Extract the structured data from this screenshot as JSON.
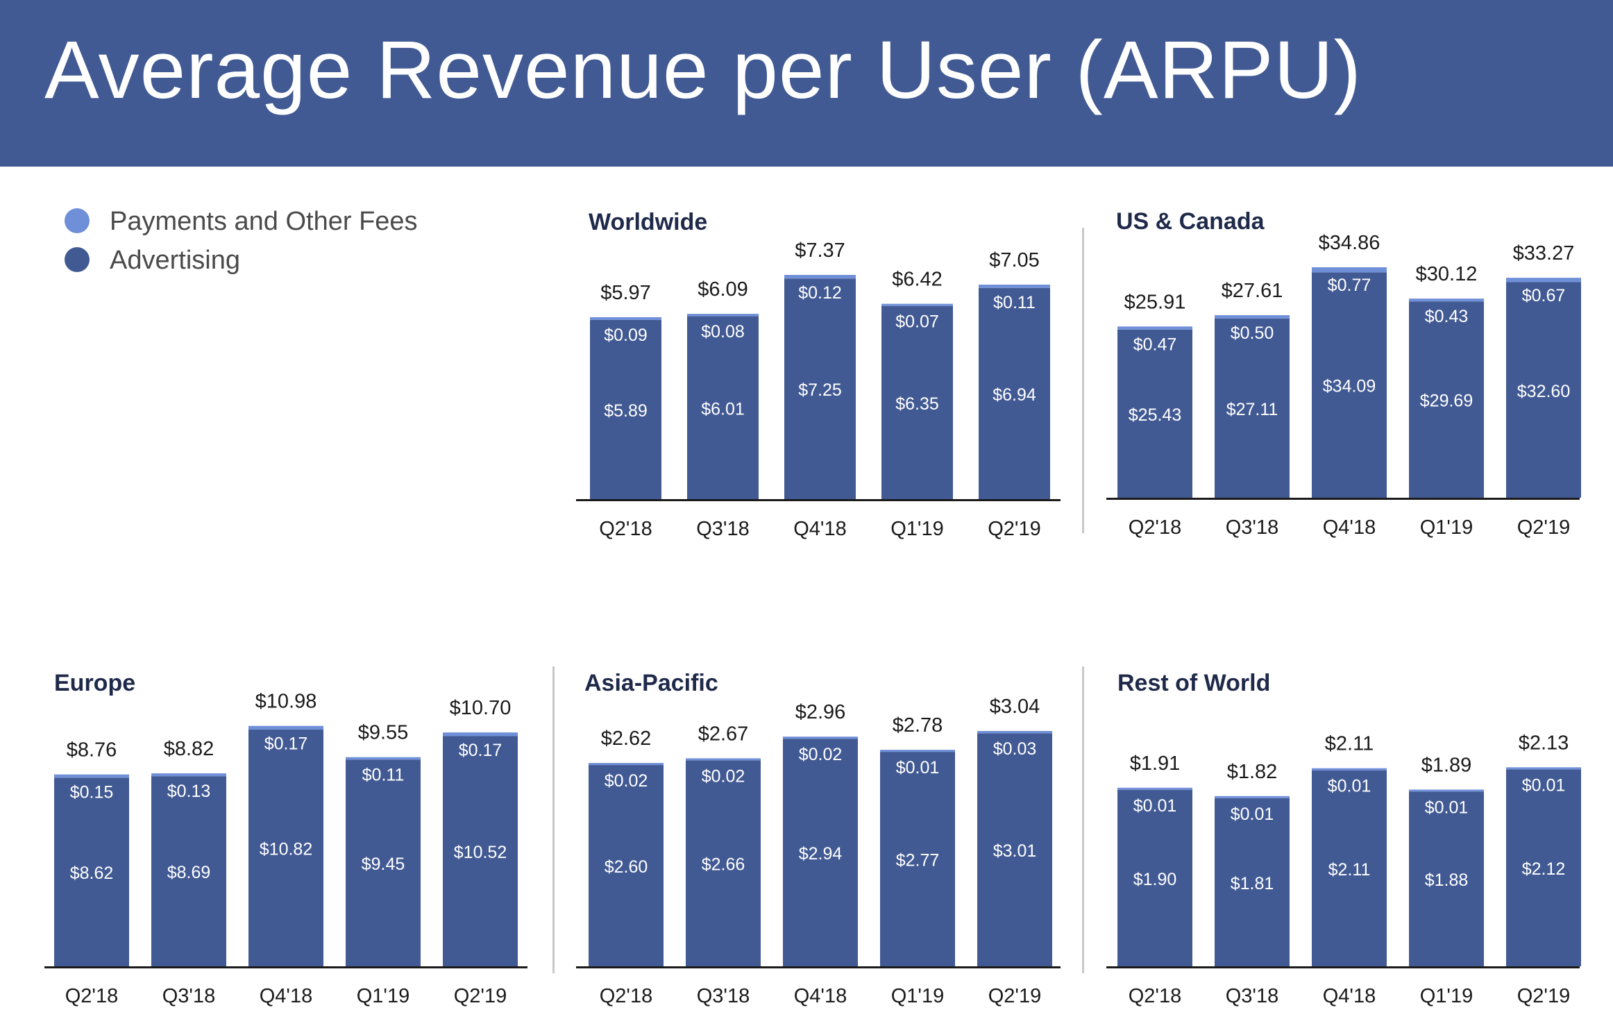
{
  "title": "Average Revenue per User (ARPU)",
  "colors": {
    "header": "#425a93",
    "advertising": "#425a93",
    "payments": "#6f8fd8",
    "axis": "#1a1a1a",
    "title_text": "#1f2a4a"
  },
  "legend": [
    {
      "label": "Payments and Other Fees",
      "color": "#6f8fd8"
    },
    {
      "label": "Advertising",
      "color": "#425a93"
    }
  ],
  "chart_data": [
    {
      "type": "bar",
      "stacked": true,
      "title": "Worldwide",
      "categories": [
        "Q2'18",
        "Q3'18",
        "Q4'18",
        "Q1'19",
        "Q2'19"
      ],
      "series": [
        {
          "name": "Advertising",
          "values": [
            5.89,
            6.01,
            7.25,
            6.35,
            6.94
          ],
          "labels": [
            "$5.89",
            "$6.01",
            "$7.25",
            "$6.35",
            "$6.94"
          ]
        },
        {
          "name": "Payments and Other Fees",
          "values": [
            0.09,
            0.08,
            0.12,
            0.07,
            0.11
          ],
          "labels": [
            "$0.09",
            "$0.08",
            "$0.12",
            "$0.07",
            "$0.11"
          ]
        }
      ],
      "totals": [
        5.97,
        6.09,
        7.37,
        6.42,
        7.05
      ],
      "total_labels": [
        "$5.97",
        "$6.09",
        "$7.37",
        "$6.42",
        "$7.05"
      ]
    },
    {
      "type": "bar",
      "stacked": true,
      "title": "US & Canada",
      "categories": [
        "Q2'18",
        "Q3'18",
        "Q4'18",
        "Q1'19",
        "Q2'19"
      ],
      "series": [
        {
          "name": "Advertising",
          "values": [
            25.43,
            27.11,
            34.09,
            29.69,
            32.6
          ],
          "labels": [
            "$25.43",
            "$27.11",
            "$34.09",
            "$29.69",
            "$32.60"
          ]
        },
        {
          "name": "Payments and Other Fees",
          "values": [
            0.47,
            0.5,
            0.77,
            0.43,
            0.67
          ],
          "labels": [
            "$0.47",
            "$0.50",
            "$0.77",
            "$0.43",
            "$0.67"
          ]
        }
      ],
      "totals": [
        25.91,
        27.61,
        34.86,
        30.12,
        33.27
      ],
      "total_labels": [
        "$25.91",
        "$27.61",
        "$34.86",
        "$30.12",
        "$33.27"
      ]
    },
    {
      "type": "bar",
      "stacked": true,
      "title": "Europe",
      "categories": [
        "Q2'18",
        "Q3'18",
        "Q4'18",
        "Q1'19",
        "Q2'19"
      ],
      "series": [
        {
          "name": "Advertising",
          "values": [
            8.62,
            8.69,
            10.82,
            9.45,
            10.52
          ],
          "labels": [
            "$8.62",
            "$8.69",
            "$10.82",
            "$9.45",
            "$10.52"
          ]
        },
        {
          "name": "Payments and Other Fees",
          "values": [
            0.15,
            0.13,
            0.17,
            0.11,
            0.17
          ],
          "labels": [
            "$0.15",
            "$0.13",
            "$0.17",
            "$0.11",
            "$0.17"
          ]
        }
      ],
      "totals": [
        8.76,
        8.82,
        10.98,
        9.55,
        10.7
      ],
      "total_labels": [
        "$8.76",
        "$8.82",
        "$10.98",
        "$9.55",
        "$10.70"
      ]
    },
    {
      "type": "bar",
      "stacked": true,
      "title": "Asia-Pacific",
      "categories": [
        "Q2'18",
        "Q3'18",
        "Q4'18",
        "Q1'19",
        "Q2'19"
      ],
      "series": [
        {
          "name": "Advertising",
          "values": [
            2.6,
            2.66,
            2.94,
            2.77,
            3.01
          ],
          "labels": [
            "$2.60",
            "$2.66",
            "$2.94",
            "$2.77",
            "$3.01"
          ]
        },
        {
          "name": "Payments and Other Fees",
          "values": [
            0.02,
            0.02,
            0.02,
            0.01,
            0.03
          ],
          "labels": [
            "$0.02",
            "$0.02",
            "$0.02",
            "$0.01",
            "$0.03"
          ]
        }
      ],
      "totals": [
        2.62,
        2.67,
        2.96,
        2.78,
        3.04
      ],
      "total_labels": [
        "$2.62",
        "$2.67",
        "$2.96",
        "$2.78",
        "$3.04"
      ]
    },
    {
      "type": "bar",
      "stacked": true,
      "title": "Rest of World",
      "categories": [
        "Q2'18",
        "Q3'18",
        "Q4'18",
        "Q1'19",
        "Q2'19"
      ],
      "series": [
        {
          "name": "Advertising",
          "values": [
            1.9,
            1.81,
            2.11,
            1.88,
            2.12
          ],
          "labels": [
            "$1.90",
            "$1.81",
            "$2.11",
            "$1.88",
            "$2.12"
          ]
        },
        {
          "name": "Payments and Other Fees",
          "values": [
            0.01,
            0.01,
            0.01,
            0.01,
            0.01
          ],
          "labels": [
            "$0.01",
            "$0.01",
            "$0.01",
            "$0.01",
            "$0.01"
          ]
        }
      ],
      "totals": [
        1.91,
        1.82,
        2.11,
        1.89,
        2.13
      ],
      "total_labels": [
        "$1.91",
        "$1.82",
        "$2.11",
        "$1.89",
        "$2.13"
      ]
    }
  ]
}
